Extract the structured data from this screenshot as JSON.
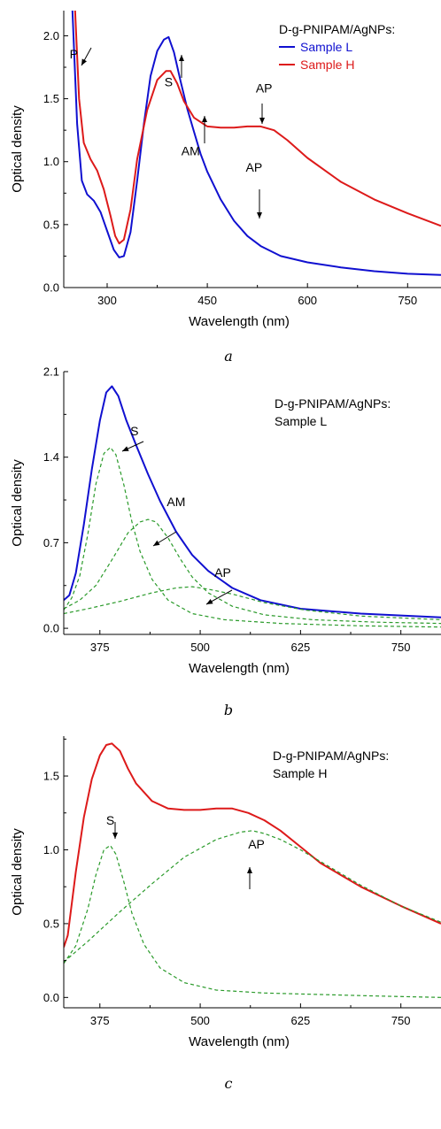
{
  "chart_data": [
    {
      "type": "line",
      "caption": "a",
      "xlabel": "Wavelength (nm)",
      "ylabel": "Optical density",
      "xlim": [
        235,
        800
      ],
      "ylim": [
        0,
        2.2
      ],
      "xticks": [
        300,
        450,
        600,
        750
      ],
      "yticks": [
        0.0,
        0.5,
        1.0,
        1.5,
        2.0
      ],
      "legend": {
        "title": "D-g-PNIPAM/AgNPs:",
        "placement": "top-right"
      },
      "series": [
        {
          "name": "Sample L",
          "color": "#1010d0",
          "dashed": false,
          "x": [
            248,
            255,
            262,
            270,
            280,
            290,
            300,
            310,
            318,
            325,
            335,
            345,
            355,
            365,
            375,
            385,
            392,
            400,
            410,
            420,
            430,
            440,
            450,
            470,
            490,
            510,
            530,
            560,
            600,
            650,
            700,
            750,
            800
          ],
          "y": [
            2.2,
            1.3,
            0.85,
            0.74,
            0.69,
            0.6,
            0.45,
            0.3,
            0.24,
            0.25,
            0.44,
            0.85,
            1.3,
            1.68,
            1.88,
            1.97,
            1.99,
            1.87,
            1.64,
            1.42,
            1.24,
            1.06,
            0.92,
            0.7,
            0.53,
            0.41,
            0.33,
            0.25,
            0.2,
            0.16,
            0.13,
            0.11,
            0.1
          ]
        },
        {
          "name": "Sample H",
          "color": "#dd1a1a",
          "dashed": false,
          "x": [
            252,
            258,
            265,
            275,
            285,
            295,
            305,
            312,
            318,
            325,
            335,
            345,
            360,
            375,
            388,
            395,
            405,
            415,
            430,
            450,
            470,
            490,
            510,
            530,
            550,
            570,
            600,
            650,
            700,
            750,
            800
          ],
          "y": [
            2.2,
            1.5,
            1.15,
            1.02,
            0.93,
            0.78,
            0.57,
            0.41,
            0.35,
            0.38,
            0.62,
            1.02,
            1.41,
            1.65,
            1.72,
            1.72,
            1.62,
            1.48,
            1.35,
            1.28,
            1.27,
            1.27,
            1.28,
            1.28,
            1.25,
            1.17,
            1.03,
            0.84,
            0.7,
            0.59,
            0.49
          ]
        }
      ],
      "annotations": [
        {
          "text": "P",
          "x": 250,
          "y": 1.82
        },
        {
          "text": "S",
          "x": 392,
          "y": 1.6
        },
        {
          "text": "AM",
          "x": 425,
          "y": 1.05
        },
        {
          "text": "AP",
          "x": 535,
          "y": 1.55
        },
        {
          "text": "AP",
          "x": 520,
          "y": 0.92
        }
      ]
    },
    {
      "type": "line",
      "caption": "b",
      "xlabel": "Wavelength (nm)",
      "ylabel": "Optical density",
      "xlim": [
        330,
        800
      ],
      "ylim": [
        -0.05,
        2.1
      ],
      "xticks": [
        375,
        500,
        625,
        750
      ],
      "yticks": [
        0.0,
        0.7,
        1.4,
        2.1
      ],
      "legend": {
        "title": "D-g-PNIPAM/AgNPs:",
        "subtitle": "Sample L",
        "placement": "top-right"
      },
      "series": [
        {
          "name": "Sample L",
          "color": "#1010d0",
          "dashed": false,
          "x": [
            330,
            337,
            345,
            355,
            365,
            375,
            383,
            390,
            398,
            408,
            420,
            435,
            450,
            470,
            490,
            510,
            540,
            575,
            625,
            700,
            800
          ],
          "y": [
            0.23,
            0.27,
            0.45,
            0.85,
            1.3,
            1.7,
            1.93,
            1.98,
            1.9,
            1.7,
            1.5,
            1.26,
            1.04,
            0.79,
            0.6,
            0.47,
            0.33,
            0.23,
            0.16,
            0.12,
            0.09
          ]
        },
        {
          "name": "S",
          "color": "#2a9a2a",
          "dashed": true,
          "x": [
            330,
            340,
            350,
            360,
            370,
            380,
            388,
            395,
            405,
            415,
            425,
            440,
            460,
            490,
            530,
            600,
            700,
            800
          ],
          "y": [
            0.15,
            0.25,
            0.43,
            0.77,
            1.18,
            1.43,
            1.48,
            1.42,
            1.17,
            0.87,
            0.63,
            0.4,
            0.23,
            0.12,
            0.07,
            0.04,
            0.02,
            0.01
          ]
        },
        {
          "name": "AM",
          "color": "#2a9a2a",
          "dashed": true,
          "x": [
            330,
            350,
            370,
            390,
            410,
            425,
            435,
            445,
            460,
            475,
            490,
            510,
            540,
            580,
            640,
            720,
            800
          ],
          "y": [
            0.16,
            0.23,
            0.35,
            0.56,
            0.78,
            0.87,
            0.89,
            0.87,
            0.74,
            0.57,
            0.42,
            0.29,
            0.18,
            0.11,
            0.07,
            0.05,
            0.04
          ]
        },
        {
          "name": "AP",
          "color": "#2a9a2a",
          "dashed": true,
          "x": [
            330,
            360,
            400,
            440,
            470,
            490,
            510,
            540,
            580,
            630,
            700,
            800
          ],
          "y": [
            0.12,
            0.16,
            0.22,
            0.29,
            0.33,
            0.34,
            0.32,
            0.28,
            0.21,
            0.15,
            0.1,
            0.07
          ]
        }
      ],
      "annotations": [
        {
          "text": "S",
          "x": 418,
          "y": 1.58
        },
        {
          "text": "AM",
          "x": 470,
          "y": 1.0
        },
        {
          "text": "AP",
          "x": 528,
          "y": 0.42
        }
      ]
    },
    {
      "type": "line",
      "caption": "c",
      "xlabel": "Wavelength (nm)",
      "ylabel": "Optical density",
      "xlim": [
        330,
        800
      ],
      "ylim": [
        -0.07,
        1.77
      ],
      "xticks": [
        375,
        500,
        625,
        750
      ],
      "yticks": [
        0.0,
        0.5,
        1.0,
        1.5
      ],
      "legend": {
        "title": "D-g-PNIPAM/AgNPs:",
        "subtitle": "Sample H",
        "placement": "top-right"
      },
      "series": [
        {
          "name": "Sample H",
          "color": "#dd1a1a",
          "dashed": false,
          "x": [
            330,
            335,
            345,
            355,
            365,
            375,
            383,
            390,
            400,
            410,
            420,
            440,
            460,
            480,
            500,
            520,
            540,
            560,
            580,
            600,
            625,
            650,
            700,
            750,
            800
          ],
          "y": [
            0.34,
            0.42,
            0.85,
            1.22,
            1.48,
            1.64,
            1.71,
            1.72,
            1.67,
            1.55,
            1.45,
            1.33,
            1.28,
            1.27,
            1.27,
            1.28,
            1.28,
            1.25,
            1.2,
            1.13,
            1.02,
            0.91,
            0.75,
            0.62,
            0.5
          ]
        },
        {
          "name": "S",
          "color": "#2a9a2a",
          "dashed": true,
          "x": [
            330,
            345,
            360,
            370,
            380,
            388,
            395,
            405,
            415,
            430,
            450,
            480,
            520,
            580,
            650,
            720,
            800
          ],
          "y": [
            0.23,
            0.35,
            0.6,
            0.83,
            1.0,
            1.03,
            0.97,
            0.78,
            0.57,
            0.36,
            0.2,
            0.1,
            0.05,
            0.03,
            0.02,
            0.01,
            0.0
          ]
        },
        {
          "name": "AP",
          "color": "#2a9a2a",
          "dashed": true,
          "x": [
            330,
            360,
            400,
            440,
            480,
            520,
            550,
            565,
            580,
            600,
            625,
            650,
            700,
            750,
            800
          ],
          "y": [
            0.24,
            0.38,
            0.58,
            0.77,
            0.95,
            1.07,
            1.12,
            1.13,
            1.11,
            1.07,
            1.0,
            0.92,
            0.76,
            0.62,
            0.51
          ]
        }
      ],
      "annotations": [
        {
          "text": "S",
          "x": 388,
          "y": 1.17
        },
        {
          "text": "AP",
          "x": 570,
          "y": 1.01
        }
      ]
    }
  ]
}
